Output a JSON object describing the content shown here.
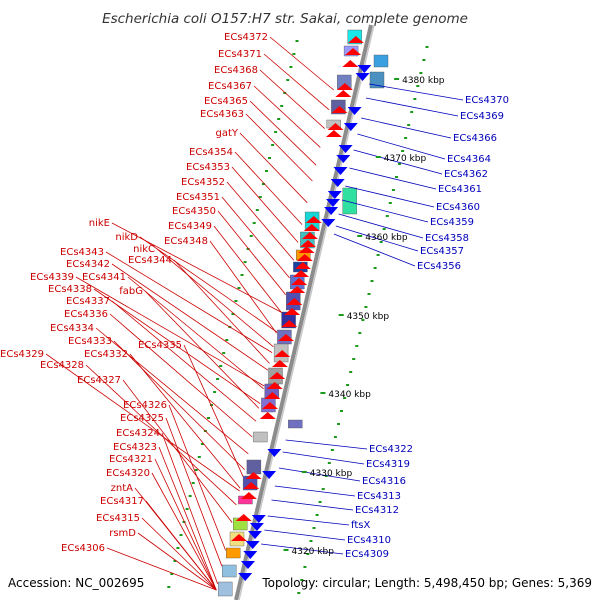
{
  "header": {
    "title": "Escherichia coli O157:H7 str. Sakai, complete genome"
  },
  "footer": {
    "accession": "Accession: NC_002695",
    "summary": "Topology: circular; Length: 5,498,450 bp; Genes: 5,369"
  },
  "colors": {
    "plus_strand": "#ff0000",
    "minus_strand": "#0000ff",
    "left_label": "#cc0000",
    "right_label": "#0000bb",
    "backbone": "#999999",
    "gc_marks": "#1a9a1a"
  },
  "ticks": [
    "4380 kbp",
    "4370 kbp",
    "4360 kbp",
    "4350 kbp",
    "4340 kbp",
    "4330 kbp",
    "4320 kbp"
  ],
  "left_labels": [
    "ECs4372",
    "ECs4371",
    "ECs4368",
    "ECs4367",
    "ECs4365",
    "ECs4363",
    "gatY",
    "ECs4354",
    "ECs4353",
    "ECs4352",
    "ECs4351",
    "ECs4350",
    "ECs4349",
    "nikE",
    "ECs4348",
    "nikD",
    "nikC",
    "ECs4343",
    "ECs4344",
    "ECs4342",
    "ECs4339",
    "ECs4341",
    "ECs4338",
    "fabG",
    "ECs4337",
    "ECs4336",
    "ECs4334",
    "ECs4333",
    "ECs4335",
    "ECs4332",
    "ECs4329",
    "ECs4328",
    "ECs4327",
    "ECs4326",
    "ECs4325",
    "ECs4324",
    "ECs4323",
    "ECs4321",
    "ECs4320",
    "zntA",
    "ECs4317",
    "ECs4315",
    "rsmD",
    "ECs4306"
  ],
  "right_labels": [
    "ECs4370",
    "ECs4369",
    "ECs4366",
    "ECs4364",
    "ECs4362",
    "ECs4361",
    "ECs4360",
    "ECs4359",
    "ECs4358",
    "ECs4357",
    "ECs4356",
    "ECs4322",
    "ECs4319",
    "ECs4316",
    "ECs4313",
    "ECs4312",
    "ftsX",
    "ECs4310",
    "ECs4309"
  ]
}
